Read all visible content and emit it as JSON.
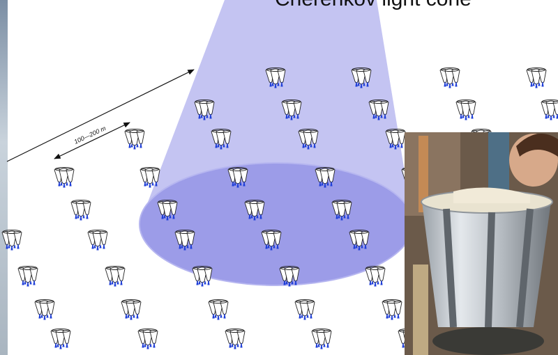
{
  "title": "Cherenkov light cone",
  "scale_label": "100—200 m"
}
